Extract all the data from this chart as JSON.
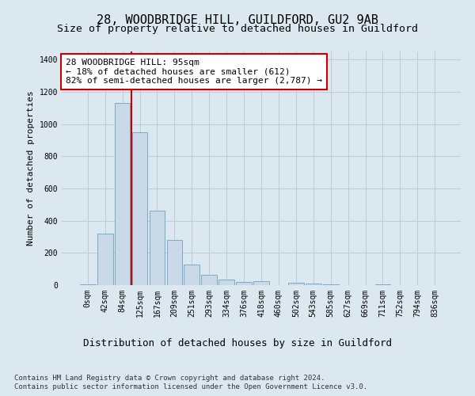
{
  "title_line1": "28, WOODBRIDGE HILL, GUILDFORD, GU2 9AB",
  "title_line2": "Size of property relative to detached houses in Guildford",
  "xlabel": "Distribution of detached houses by size in Guildford",
  "ylabel": "Number of detached properties",
  "footnote1": "Contains HM Land Registry data © Crown copyright and database right 2024.",
  "footnote2": "Contains public sector information licensed under the Open Government Licence v3.0.",
  "bar_labels": [
    "0sqm",
    "42sqm",
    "84sqm",
    "125sqm",
    "167sqm",
    "209sqm",
    "251sqm",
    "293sqm",
    "334sqm",
    "376sqm",
    "418sqm",
    "460sqm",
    "502sqm",
    "543sqm",
    "585sqm",
    "627sqm",
    "669sqm",
    "711sqm",
    "752sqm",
    "794sqm",
    "836sqm"
  ],
  "bar_values": [
    5,
    320,
    1130,
    950,
    460,
    280,
    130,
    65,
    35,
    22,
    25,
    0,
    15,
    10,
    5,
    0,
    0,
    5,
    0,
    0,
    0
  ],
  "bar_color": "#c9d9e8",
  "bar_edge_color": "#7aaac8",
  "vline_color": "#cc0000",
  "vline_x": 2.5,
  "annotation_text": "28 WOODBRIDGE HILL: 95sqm\n← 18% of detached houses are smaller (612)\n82% of semi-detached houses are larger (2,787) →",
  "annotation_box_facecolor": "#ffffff",
  "annotation_box_edgecolor": "#cc0000",
  "ylim": [
    0,
    1450
  ],
  "yticks": [
    0,
    200,
    400,
    600,
    800,
    1000,
    1200,
    1400
  ],
  "figure_facecolor": "#dce8f0",
  "axes_facecolor": "#dce8f0",
  "grid_color": "#b8ccd8",
  "title_fontsize": 11,
  "subtitle_fontsize": 9.5,
  "ylabel_fontsize": 8,
  "xlabel_fontsize": 9,
  "tick_fontsize": 7,
  "annotation_fontsize": 8,
  "footnote_fontsize": 6.5
}
